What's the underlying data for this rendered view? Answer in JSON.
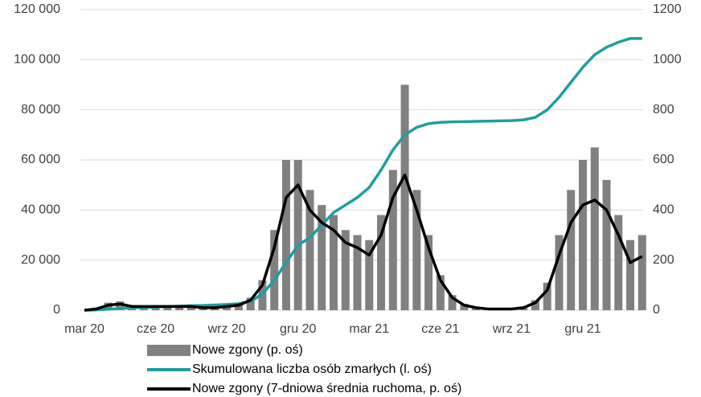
{
  "chart_data": {
    "type": "bar",
    "categories": [
      "mar 20",
      null,
      null,
      null,
      null,
      null,
      "cze 20",
      null,
      null,
      null,
      null,
      null,
      "wrz 20",
      null,
      null,
      null,
      null,
      null,
      "gru 20",
      null,
      null,
      null,
      null,
      null,
      "mar 21",
      null,
      null,
      null,
      null,
      null,
      "cze 21",
      null,
      null,
      null,
      null,
      null,
      "wrz 21",
      null,
      null,
      null,
      null,
      null,
      "gru 21",
      null,
      null,
      null,
      null,
      null
    ],
    "ylim": [
      0,
      120000
    ],
    "yticks": [
      {
        "value": 0,
        "label": "0"
      },
      {
        "value": 20000,
        "label": "20 000"
      },
      {
        "value": 40000,
        "label": "40 000"
      },
      {
        "value": 60000,
        "label": "60 000"
      },
      {
        "value": 80000,
        "label": "80 000"
      },
      {
        "value": 100000,
        "label": "100 000"
      },
      {
        "value": 120000,
        "label": "120 000"
      }
    ],
    "y2lim": [
      0,
      1200
    ],
    "y2ticks": [
      0,
      200,
      400,
      600,
      800,
      1000,
      1200
    ],
    "grid": true,
    "series": [
      {
        "name": "Nowe zgony (p. oś)",
        "type": "bar",
        "axis": "y2",
        "color": "#808080",
        "values": [
          0,
          10,
          30,
          35,
          20,
          18,
          20,
          18,
          15,
          14,
          12,
          12,
          20,
          25,
          50,
          120,
          320,
          600,
          600,
          480,
          420,
          380,
          320,
          300,
          280,
          380,
          560,
          900,
          480,
          300,
          140,
          60,
          25,
          12,
          8,
          6,
          8,
          14,
          40,
          110,
          300,
          480,
          600,
          650,
          520,
          380,
          280,
          300
        ]
      },
      {
        "name": "Skumulowana liczba osób zmarłych (l. oś)",
        "type": "line",
        "axis": "y",
        "color": "#1f9e9e",
        "values": [
          0,
          100,
          400,
          700,
          1000,
          1100,
          1300,
          1500,
          1600,
          1800,
          1900,
          2100,
          2300,
          2600,
          3500,
          6500,
          12000,
          19000,
          26000,
          29000,
          34000,
          39000,
          42000,
          45000,
          49000,
          56000,
          64000,
          70000,
          73000,
          74500,
          75000,
          75200,
          75300,
          75400,
          75500,
          75600,
          75700,
          76000,
          77000,
          80000,
          85000,
          91000,
          97000,
          102000,
          105000,
          107000,
          108500,
          108500
        ]
      },
      {
        "name": "Nowe zgony (7-dniowa średnia ruchoma, p. oś)",
        "type": "line",
        "axis": "y2",
        "color": "#000000",
        "values": [
          0,
          5,
          20,
          25,
          15,
          15,
          15,
          15,
          15,
          15,
          10,
          10,
          15,
          20,
          40,
          100,
          250,
          450,
          500,
          400,
          350,
          320,
          270,
          250,
          220,
          300,
          450,
          540,
          400,
          250,
          120,
          50,
          20,
          10,
          5,
          5,
          5,
          10,
          30,
          80,
          220,
          350,
          420,
          440,
          400,
          300,
          190,
          215
        ]
      }
    ]
  }
}
